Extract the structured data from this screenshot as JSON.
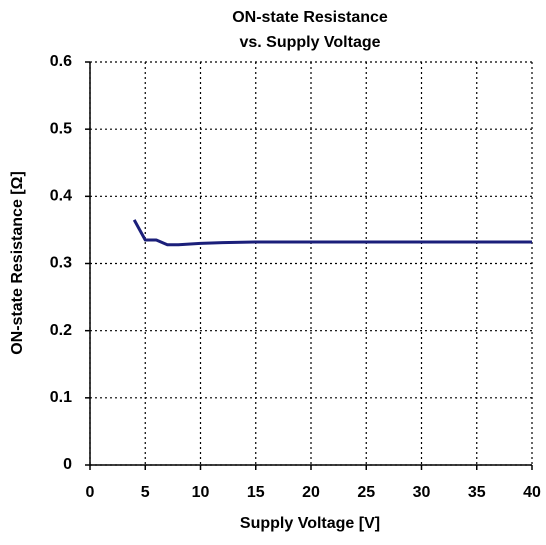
{
  "chart_data": {
    "type": "line",
    "title": [
      "ON-state Resistance",
      "vs. Supply Voltage"
    ],
    "x_label": "Supply Voltage [V]",
    "y_label": "ON-state Resistance [Ω]",
    "x": [
      4,
      5,
      6,
      7,
      8,
      10,
      12,
      15,
      20,
      25,
      30,
      35,
      40
    ],
    "series": [
      {
        "name": "ON-state Resistance",
        "color": "#1b1f7a",
        "values": [
          0.365,
          0.335,
          0.335,
          0.328,
          0.328,
          0.33,
          0.331,
          0.332,
          0.332,
          0.332,
          0.332,
          0.332,
          0.332
        ]
      }
    ],
    "xlim": [
      0,
      40
    ],
    "xticks": [
      0,
      5,
      10,
      15,
      20,
      25,
      30,
      35,
      40
    ],
    "ylim": [
      0,
      0.6
    ],
    "yticks": [
      0,
      0.1,
      0.2,
      0.3,
      0.4,
      0.5,
      0.6
    ],
    "grid": true
  }
}
